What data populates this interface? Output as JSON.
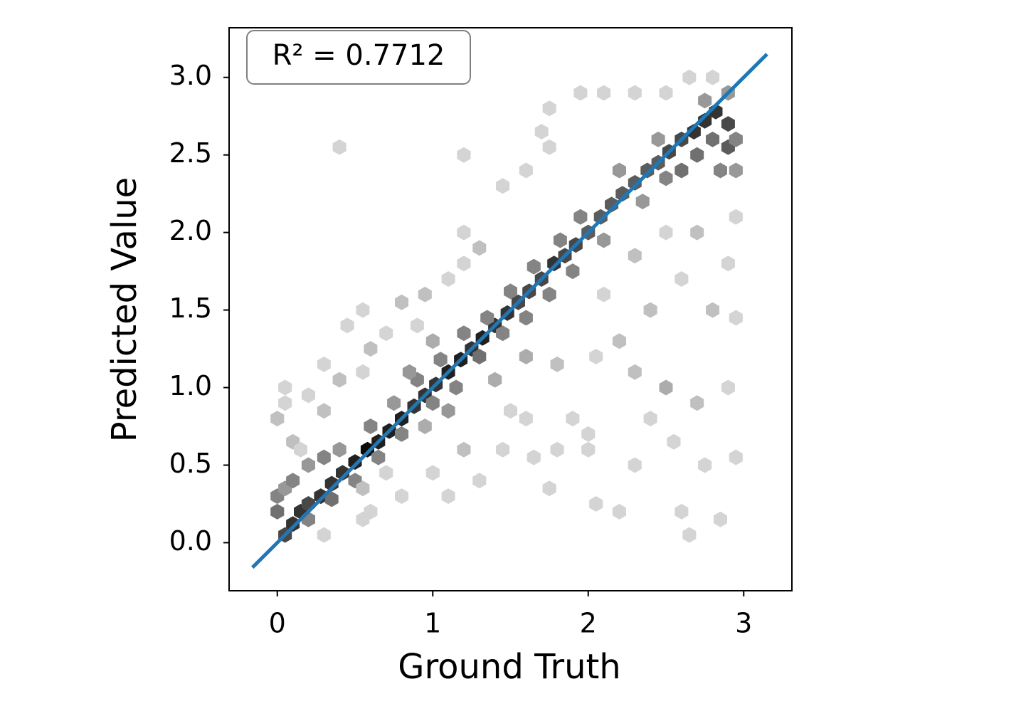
{
  "chart_data": {
    "type": "hexbin",
    "xlabel": "Ground Truth",
    "ylabel": "Predicted Value",
    "annotation": "R² = 0.7712",
    "xlim": [
      -0.31,
      3.31
    ],
    "ylim": [
      -0.31,
      3.32
    ],
    "xticks": [
      0,
      1,
      2,
      3
    ],
    "yticks": [
      {
        "value": 0,
        "label": "0.0"
      },
      {
        "value": 0.5,
        "label": "0.5"
      },
      {
        "value": 1,
        "label": "1.0"
      },
      {
        "value": 1.5,
        "label": "1.5"
      },
      {
        "value": 2,
        "label": "2.0"
      },
      {
        "value": 2.5,
        "label": "2.5"
      },
      {
        "value": 3,
        "label": "3.0"
      }
    ],
    "clim": [
      1,
      11
    ],
    "hexbins": {
      "x": [
        0.05,
        0.1,
        0.15,
        0.2,
        0.28,
        0.35,
        0.42,
        0.5,
        0.58,
        0.65,
        0.72,
        0.8,
        0.88,
        0.95,
        1.02,
        1.1,
        1.18,
        1.25,
        1.32,
        1.4,
        1.48,
        1.55,
        1.62,
        1.7,
        1.78,
        1.85,
        1.92,
        2.0,
        2.08,
        2.15,
        2.22,
        2.3,
        2.38,
        2.45,
        2.52,
        2.6,
        2.68,
        2.75,
        2.82,
        2.9,
        2.9,
        0.0,
        0.0,
        0.05,
        0.1,
        0.2,
        0.3,
        0.4,
        0.2,
        0.35,
        0.5,
        0.65,
        0.8,
        0.6,
        0.75,
        0.9,
        1.05,
        1.0,
        1.15,
        1.3,
        1.2,
        1.35,
        1.45,
        1.6,
        1.5,
        1.65,
        1.75,
        1.9,
        1.82,
        1.95,
        2.1,
        2.2,
        2.35,
        2.5,
        2.45,
        2.6,
        2.7,
        2.8,
        2.85,
        2.95,
        2.95,
        2.75,
        2.9,
        0.85,
        1.1,
        0.95,
        0.0,
        0.05,
        0.05,
        0.1,
        0.15,
        0.2,
        0.3,
        0.3,
        0.4,
        0.45,
        0.55,
        0.55,
        0.6,
        0.7,
        0.8,
        0.9,
        0.95,
        1.1,
        1.2,
        1.2,
        1.2,
        0.4,
        1.45,
        1.6,
        1.75,
        1.7,
        1.75,
        1.95,
        2.1,
        2.3,
        2.5,
        2.65,
        2.8,
        0.55,
        0.7,
        0.6,
        0.8,
        1.0,
        1.1,
        1.2,
        1.3,
        1.45,
        1.5,
        1.6,
        1.65,
        1.75,
        1.8,
        1.9,
        2.0,
        2.05,
        2.2,
        2.3,
        2.4,
        2.55,
        2.6,
        2.75,
        2.85,
        2.95,
        2.7,
        2.9,
        2.5,
        2.3,
        2.2,
        2.05,
        1.8,
        2.1,
        2.4,
        2.6,
        2.8,
        2.9,
        2.7,
        2.5,
        2.3,
        2.95,
        2.95,
        2.65,
        2.0,
        1.3,
        1.0,
        1.4,
        1.6,
        0.3,
        0.55
      ],
      "y": [
        0.05,
        0.12,
        0.2,
        0.25,
        0.3,
        0.38,
        0.45,
        0.52,
        0.6,
        0.65,
        0.72,
        0.8,
        0.88,
        0.95,
        1.02,
        1.1,
        1.18,
        1.25,
        1.32,
        1.4,
        1.48,
        1.55,
        1.62,
        1.7,
        1.8,
        1.85,
        1.92,
        2.0,
        2.1,
        2.18,
        2.25,
        2.32,
        2.4,
        2.45,
        2.52,
        2.6,
        2.65,
        2.72,
        2.78,
        2.7,
        2.55,
        0.3,
        0.2,
        0.35,
        0.4,
        0.5,
        0.55,
        0.6,
        0.15,
        0.28,
        0.4,
        0.55,
        0.7,
        0.75,
        0.9,
        1.05,
        1.18,
        0.9,
        1.0,
        1.2,
        1.35,
        1.45,
        1.35,
        1.45,
        1.62,
        1.78,
        1.6,
        1.75,
        1.95,
        2.1,
        1.95,
        2.4,
        2.2,
        2.35,
        2.6,
        2.4,
        2.5,
        2.6,
        2.4,
        2.4,
        2.6,
        2.85,
        2.9,
        1.1,
        0.85,
        0.75,
        0.8,
        0.9,
        1.0,
        0.65,
        0.6,
        0.95,
        0.85,
        1.15,
        1.05,
        1.4,
        1.1,
        1.5,
        1.25,
        1.35,
        1.55,
        1.4,
        1.6,
        1.7,
        1.8,
        2.0,
        2.5,
        2.55,
        2.3,
        2.4,
        2.55,
        2.65,
        2.8,
        2.9,
        2.9,
        2.9,
        2.9,
        3.0,
        3.0,
        0.35,
        0.45,
        0.2,
        0.3,
        0.45,
        0.3,
        0.6,
        0.4,
        0.6,
        0.85,
        0.8,
        0.55,
        0.35,
        0.6,
        0.8,
        0.6,
        0.25,
        0.2,
        0.5,
        0.8,
        0.65,
        0.2,
        0.5,
        0.15,
        0.55,
        0.9,
        1.0,
        1.0,
        1.1,
        1.3,
        1.2,
        1.15,
        1.6,
        1.5,
        1.7,
        1.5,
        1.8,
        2.0,
        2.0,
        1.85,
        2.1,
        1.45,
        0.05,
        0.7,
        1.9,
        1.3,
        1.05,
        1.2,
        0.05,
        0.15
      ],
      "counts": [
        8,
        9,
        9,
        8,
        9,
        9,
        9,
        10,
        11,
        10,
        10,
        10,
        9,
        9,
        9,
        10,
        10,
        9,
        10,
        9,
        9,
        8,
        8,
        8,
        9,
        8,
        8,
        7,
        7,
        7,
        7,
        7,
        7,
        7,
        8,
        8,
        9,
        9,
        9,
        8,
        7,
        5,
        6,
        4,
        5,
        4,
        5,
        4,
        5,
        6,
        5,
        5,
        5,
        5,
        4,
        5,
        5,
        5,
        5,
        6,
        5,
        5,
        5,
        5,
        5,
        5,
        5,
        5,
        5,
        5,
        4,
        4,
        4,
        5,
        4,
        6,
        6,
        6,
        5,
        4,
        5,
        4,
        4,
        4,
        4,
        3,
        2,
        1,
        1,
        2,
        1,
        1,
        2,
        1,
        2,
        1,
        1,
        1,
        2,
        1,
        2,
        1,
        2,
        1,
        1,
        1,
        1,
        1,
        1,
        1,
        1,
        1,
        1,
        1,
        1,
        1,
        1,
        1,
        1,
        2,
        1,
        1,
        1,
        1,
        1,
        2,
        1,
        1,
        1,
        1,
        1,
        1,
        1,
        1,
        1,
        1,
        1,
        1,
        1,
        1,
        1,
        1,
        1,
        1,
        2,
        1,
        3,
        2,
        2,
        1,
        2,
        1,
        2,
        1,
        2,
        1,
        2,
        1,
        2,
        1,
        1,
        1,
        1,
        2,
        3,
        3,
        3,
        1,
        1
      ]
    },
    "fit_line": {
      "x": [
        -0.16,
        3.15
      ],
      "y": [
        -0.16,
        3.15
      ],
      "color": "#1f77b4"
    }
  }
}
